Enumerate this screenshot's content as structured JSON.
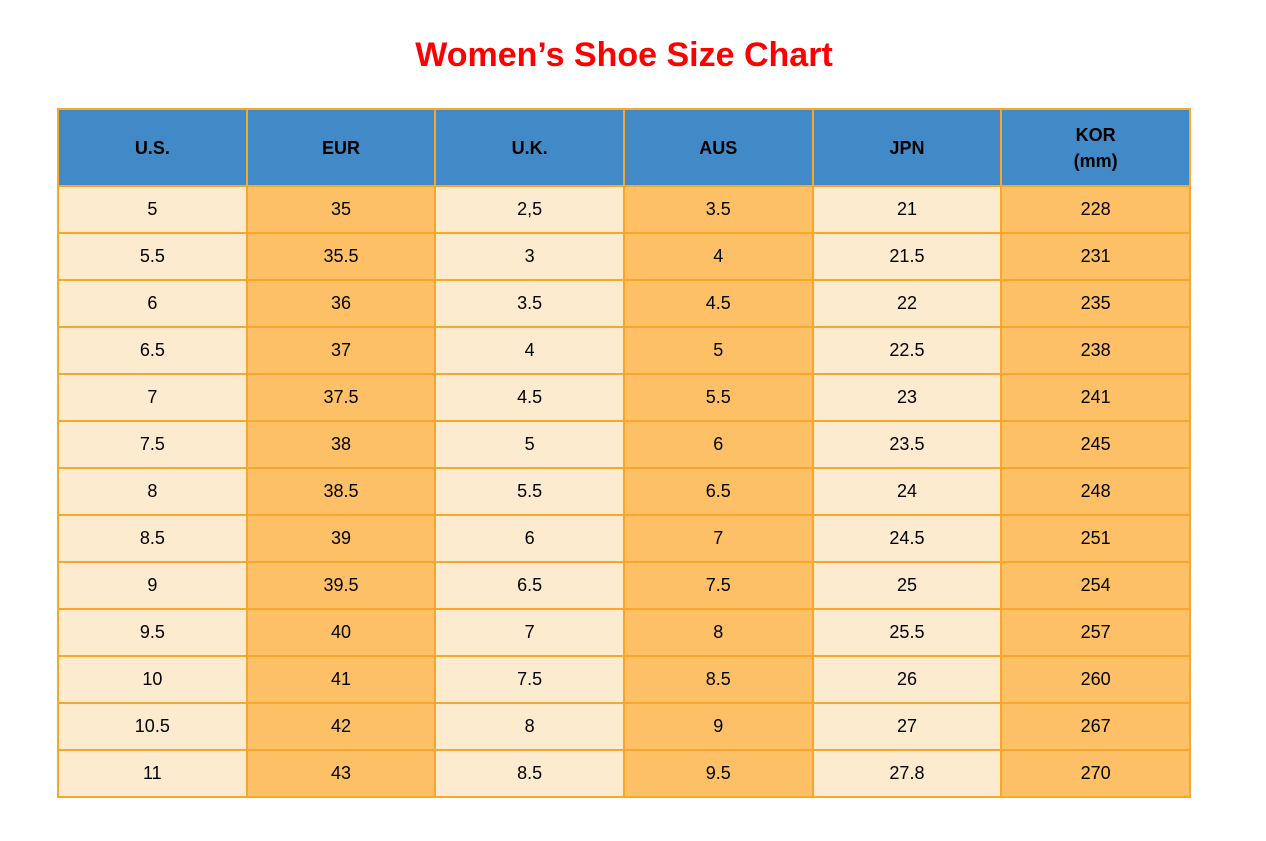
{
  "title": "Women’s Shoe Size Chart",
  "colors": {
    "title": "#FF0000",
    "header_bg": "#4189C7",
    "header_text": "#000000",
    "cell_text": "#000000",
    "col_light": "#FDEBD0",
    "col_orange": "#FEC066",
    "border": "#F9A72B",
    "background": "#FFFFFF"
  },
  "table": {
    "columns": [
      {
        "id": "us",
        "label": "U.S."
      },
      {
        "id": "eur",
        "label": "EUR"
      },
      {
        "id": "uk",
        "label": "U.K."
      },
      {
        "id": "aus",
        "label": "AUS"
      },
      {
        "id": "jpn",
        "label": "JPN"
      },
      {
        "id": "kor",
        "label": "KOR",
        "sublabel": "(mm)"
      }
    ],
    "rows": [
      [
        "5",
        "35",
        "2,5",
        "3.5",
        "21",
        "228"
      ],
      [
        "5.5",
        "35.5",
        "3",
        "4",
        "21.5",
        "231"
      ],
      [
        "6",
        "36",
        "3.5",
        "4.5",
        "22",
        "235"
      ],
      [
        "6.5",
        "37",
        "4",
        "5",
        "22.5",
        "238"
      ],
      [
        "7",
        "37.5",
        "4.5",
        "5.5",
        "23",
        "241"
      ],
      [
        "7.5",
        "38",
        "5",
        "6",
        "23.5",
        "245"
      ],
      [
        "8",
        "38.5",
        "5.5",
        "6.5",
        "24",
        "248"
      ],
      [
        "8.5",
        "39",
        "6",
        "7",
        "24.5",
        "251"
      ],
      [
        "9",
        "39.5",
        "6.5",
        "7.5",
        "25",
        "254"
      ],
      [
        "9.5",
        "40",
        "7",
        "8",
        "25.5",
        "257"
      ],
      [
        "10",
        "41",
        "7.5",
        "8.5",
        "26",
        "260"
      ],
      [
        "10.5",
        "42",
        "8",
        "9",
        "27",
        "267"
      ],
      [
        "11",
        "43",
        "8.5",
        "9.5",
        "27.8",
        "270"
      ]
    ]
  },
  "chart_data": {
    "type": "table",
    "title": "Women’s Shoe Size Chart",
    "columns": [
      "U.S.",
      "EUR",
      "U.K.",
      "AUS",
      "JPN",
      "KOR (mm)"
    ],
    "rows": [
      [
        "5",
        "35",
        "2,5",
        "3.5",
        "21",
        "228"
      ],
      [
        "5.5",
        "35.5",
        "3",
        "4",
        "21.5",
        "231"
      ],
      [
        "6",
        "36",
        "3.5",
        "4.5",
        "22",
        "235"
      ],
      [
        "6.5",
        "37",
        "4",
        "5",
        "22.5",
        "238"
      ],
      [
        "7",
        "37.5",
        "4.5",
        "5.5",
        "23",
        "241"
      ],
      [
        "7.5",
        "38",
        "5",
        "6",
        "23.5",
        "245"
      ],
      [
        "8",
        "38.5",
        "5.5",
        "6.5",
        "24",
        "248"
      ],
      [
        "8.5",
        "39",
        "6",
        "7",
        "24.5",
        "251"
      ],
      [
        "9",
        "39.5",
        "6.5",
        "7.5",
        "25",
        "254"
      ],
      [
        "9.5",
        "40",
        "7",
        "8",
        "25.5",
        "257"
      ],
      [
        "10",
        "41",
        "7.5",
        "8.5",
        "26",
        "260"
      ],
      [
        "10.5",
        "42",
        "8",
        "9",
        "27",
        "267"
      ],
      [
        "11",
        "43",
        "8.5",
        "9.5",
        "27.8",
        "270"
      ]
    ]
  }
}
